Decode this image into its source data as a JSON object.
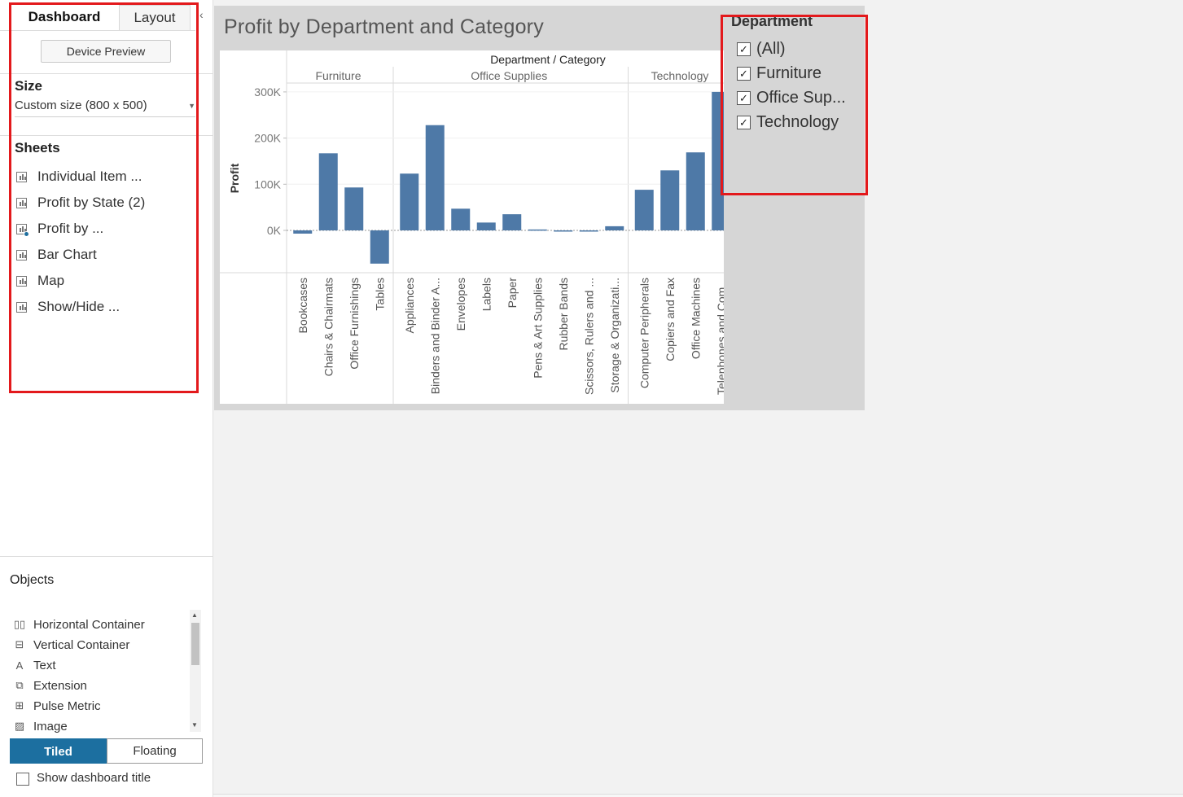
{
  "left_pane": {
    "tabs": [
      {
        "label": "Dashboard"
      },
      {
        "label": "Layout"
      }
    ],
    "collapse_glyph": "‹",
    "device_preview_label": "Device Preview",
    "size": {
      "heading": "Size",
      "value": "Custom size (800 x 500)"
    },
    "sheets": {
      "heading": "Sheets",
      "items": [
        {
          "label": "Individual Item ...",
          "icon": "bar-chart-sheet-icon"
        },
        {
          "label": "Profit by State (2)",
          "icon": "bar-chart-sheet-icon"
        },
        {
          "label": "Profit by ...",
          "icon": "bar-chart-sheet-icon-in-use"
        },
        {
          "label": "Bar Chart",
          "icon": "bar-chart-sheet-icon"
        },
        {
          "label": "Map",
          "icon": "bar-chart-sheet-icon"
        },
        {
          "label": "Show/Hide ...",
          "icon": "bar-chart-sheet-icon"
        }
      ]
    },
    "objects": {
      "heading": "Objects",
      "items": [
        {
          "label": "Horizontal Container",
          "icon": "horizontal-container-icon",
          "glyph": "▯▯"
        },
        {
          "label": "Vertical Container",
          "icon": "vertical-container-icon",
          "glyph": "⊟"
        },
        {
          "label": "Text",
          "icon": "text-icon",
          "glyph": "A"
        },
        {
          "label": "Extension",
          "icon": "extension-icon",
          "glyph": "⧉"
        },
        {
          "label": "Pulse Metric",
          "icon": "pulse-metric-icon",
          "glyph": "⊞"
        },
        {
          "label": "Image",
          "icon": "image-icon",
          "glyph": "▨"
        }
      ]
    },
    "layout_mode": {
      "tiled": "Tiled",
      "floating": "Floating",
      "selected": "Tiled"
    },
    "show_title_label": "Show dashboard title",
    "show_title_checked": false
  },
  "dashboard": {
    "title": "Profit by Department and Category",
    "filter": {
      "title": "Department",
      "items": [
        {
          "label": "(All)",
          "checked": true
        },
        {
          "label": "Furniture",
          "checked": true
        },
        {
          "label": "Office Sup...",
          "checked": true
        },
        {
          "label": "Technology",
          "checked": true
        }
      ]
    }
  },
  "colors": {
    "bar": "#4e79a7",
    "highlight": "#e3191c",
    "accent": "#1c6fa0"
  },
  "chart_data": {
    "type": "bar",
    "header_title": "Department  /  Category",
    "ylabel": "Profit",
    "ylim": [
      -75000,
      300000
    ],
    "yticks": [
      {
        "v": 300000,
        "label": "300K"
      },
      {
        "v": 200000,
        "label": "200K"
      },
      {
        "v": 100000,
        "label": "100K"
      },
      {
        "v": 0,
        "label": "0K"
      }
    ],
    "groups": [
      {
        "name": "Furniture",
        "categories": [
          "Bookcases",
          "Chairs & Chairmats",
          "Office Furnishings",
          "Tables"
        ],
        "values": [
          -7000,
          167000,
          93000,
          -72000
        ]
      },
      {
        "name": "Office Supplies",
        "categories": [
          "Appliances",
          "Binders and Binder A...",
          "Envelopes",
          "Labels",
          "Paper",
          "Pens & Art Supplies",
          "Rubber Bands",
          "Scissors, Rulers and ...",
          "Storage & Organizati..."
        ],
        "values": [
          123000,
          228000,
          47000,
          17000,
          35000,
          2000,
          -2000,
          -1000,
          9000
        ]
      },
      {
        "name": "Technology",
        "categories": [
          "Computer Peripherals",
          "Copiers and Fax",
          "Office Machines",
          "Telephones and Com..."
        ],
        "values": [
          88000,
          130000,
          169000,
          300000
        ]
      }
    ]
  }
}
